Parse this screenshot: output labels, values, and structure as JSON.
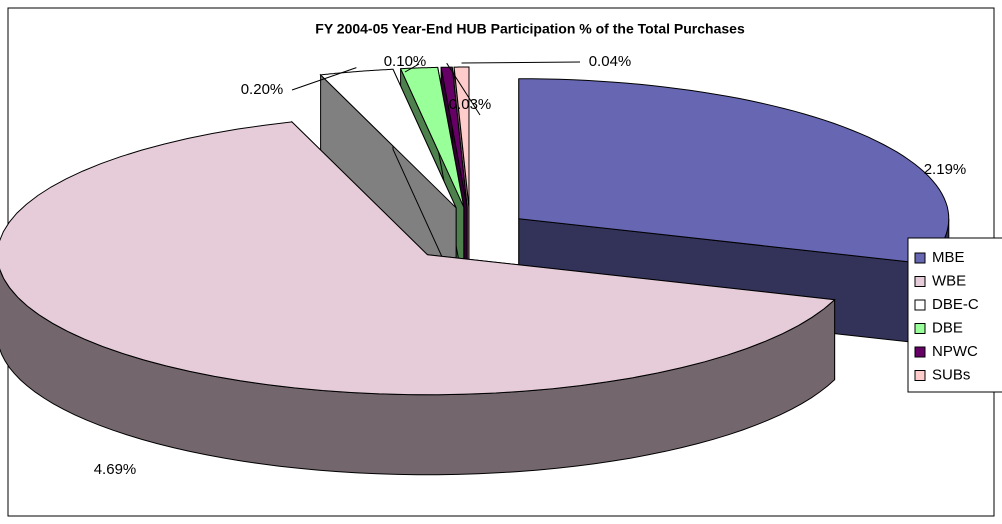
{
  "chart_data": {
    "type": "pie",
    "title": "FY 2004-05 Year-End HUB Participation % of the Total Purchases",
    "categories": [
      "MBE",
      "WBE",
      "DBE-C",
      "DBE",
      "NPWC",
      "SUBs"
    ],
    "values": [
      2.19,
      4.69,
      0.2,
      0.1,
      0.03,
      0.04
    ],
    "value_labels": [
      "2.19%",
      "4.69%",
      "0.20%",
      "0.10%",
      "0.03%",
      "0.04%"
    ],
    "colors": [
      "#6666b3",
      "#e6ccd9",
      "#ffffff",
      "#99ff99",
      "#660066",
      "#ffcccc"
    ],
    "legend": "right"
  }
}
